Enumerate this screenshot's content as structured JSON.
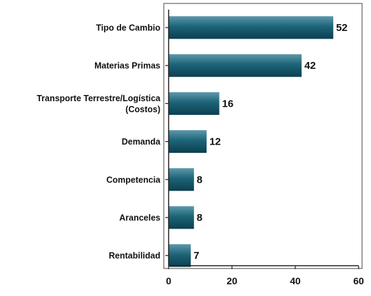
{
  "chart_data": {
    "type": "bar",
    "orientation": "horizontal",
    "categories": [
      [
        "Tipo de Cambio"
      ],
      [
        "Materias Primas"
      ],
      [
        "Transporte Terrestre/Logística",
        "(Costos)"
      ],
      [
        "Demanda"
      ],
      [
        "Competencia"
      ],
      [
        "Aranceles"
      ],
      [
        "Rentabilidad"
      ]
    ],
    "values": [
      52,
      42,
      16,
      12,
      8,
      8,
      7
    ],
    "value_labels": [
      "52",
      "42",
      "16",
      "12",
      "8",
      "8",
      "7"
    ],
    "xlim": [
      0,
      60
    ],
    "x_ticks": [
      0,
      20,
      40,
      60
    ],
    "x_tick_labels": [
      "0",
      "20",
      "40",
      "60"
    ],
    "grid": false,
    "legend": "none",
    "colors": {
      "bar_top": "#5e98aa",
      "bar_mid": "#1d6478",
      "bar_bottom": "#0c3f4f",
      "axis": "#222222",
      "frame": "#444444",
      "text": "#111111"
    }
  }
}
